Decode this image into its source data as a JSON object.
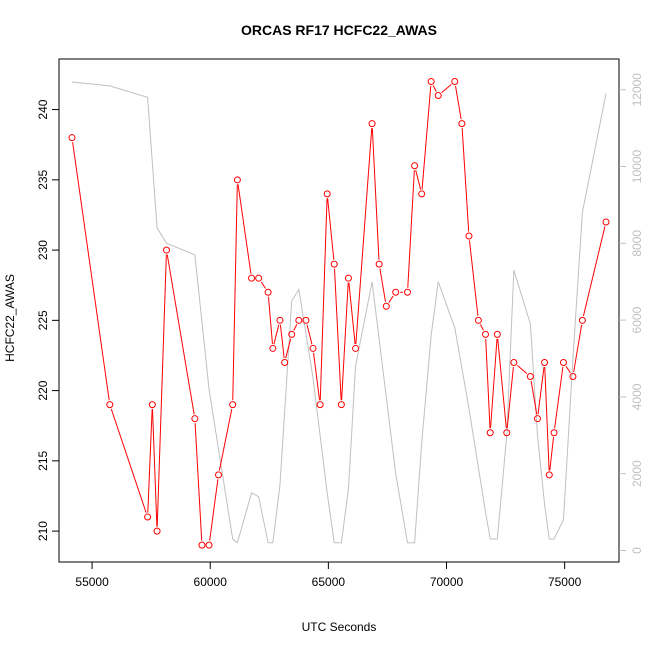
{
  "chart_data": {
    "type": "line",
    "title": "ORCAS RF17 HCFC22_AWAS",
    "xlabel": "UTC Seconds",
    "ylabel": "HCFC22_AWAS",
    "xlim": [
      53600,
      77300
    ],
    "ylim": [
      207.8,
      243.6
    ],
    "y2lim": [
      -300,
      12800
    ],
    "x_ticks": [
      55000,
      60000,
      65000,
      70000,
      75000
    ],
    "y_ticks": [
      210,
      215,
      220,
      225,
      230,
      235,
      240
    ],
    "y2_ticks": [
      0,
      2000,
      4000,
      6000,
      8000,
      10000,
      12000
    ],
    "grid": false,
    "series": [
      {
        "color": "#ff0000",
        "marker": "open-circle",
        "x": [
          54150,
          55750,
          57350,
          57550,
          57750,
          58150,
          59350,
          59650,
          59950,
          60350,
          60950,
          61150,
          61750,
          62050,
          62450,
          62650,
          62950,
          63150,
          63450,
          63750,
          64050,
          64350,
          64650,
          64950,
          65250,
          65550,
          65850,
          66150,
          66850,
          67150,
          67450,
          67850,
          68350,
          68650,
          68950,
          69350,
          69650,
          70350,
          70650,
          70950,
          71350,
          71650,
          71850,
          72150,
          72550,
          72850,
          73550,
          73850,
          74150,
          74350,
          74550,
          74950,
          75350,
          75750,
          76750
        ],
        "y": [
          238,
          219,
          211,
          219,
          210,
          230,
          218,
          209,
          209,
          214,
          219,
          235,
          228,
          228,
          227,
          223,
          225,
          222,
          224,
          225,
          225,
          223,
          219,
          234,
          229,
          219,
          228,
          223,
          239,
          229,
          226,
          227,
          227,
          236,
          234,
          242,
          241,
          242,
          239,
          231,
          225,
          224,
          217,
          224,
          217,
          222,
          221,
          218,
          222,
          214,
          217,
          222,
          221,
          225,
          232
        ]
      },
      {
        "color": "#c0c0c0",
        "axis": "right",
        "marker": "none",
        "x": [
          54150,
          55750,
          57350,
          57750,
          58150,
          59350,
          59950,
          60950,
          61150,
          61750,
          62050,
          62450,
          62650,
          62950,
          63450,
          63750,
          64350,
          64950,
          65250,
          65550,
          65850,
          66150,
          66850,
          67150,
          67850,
          68350,
          68650,
          68950,
          69350,
          69650,
          70350,
          70950,
          71650,
          71850,
          72150,
          72550,
          72850,
          73550,
          73850,
          74150,
          74350,
          74550,
          74950,
          75350,
          75750,
          76750
        ],
        "y": [
          12200,
          12100,
          11800,
          8400,
          8000,
          7700,
          4200,
          300,
          200,
          1500,
          1400,
          200,
          200,
          1700,
          6500,
          6800,
          4500,
          1500,
          200,
          200,
          1600,
          4800,
          7000,
          5500,
          2000,
          200,
          200,
          2800,
          5600,
          7000,
          5800,
          3700,
          1000,
          300,
          300,
          3000,
          7300,
          5900,
          3000,
          1200,
          300,
          300,
          800,
          5000,
          8800,
          11900
        ]
      }
    ]
  }
}
